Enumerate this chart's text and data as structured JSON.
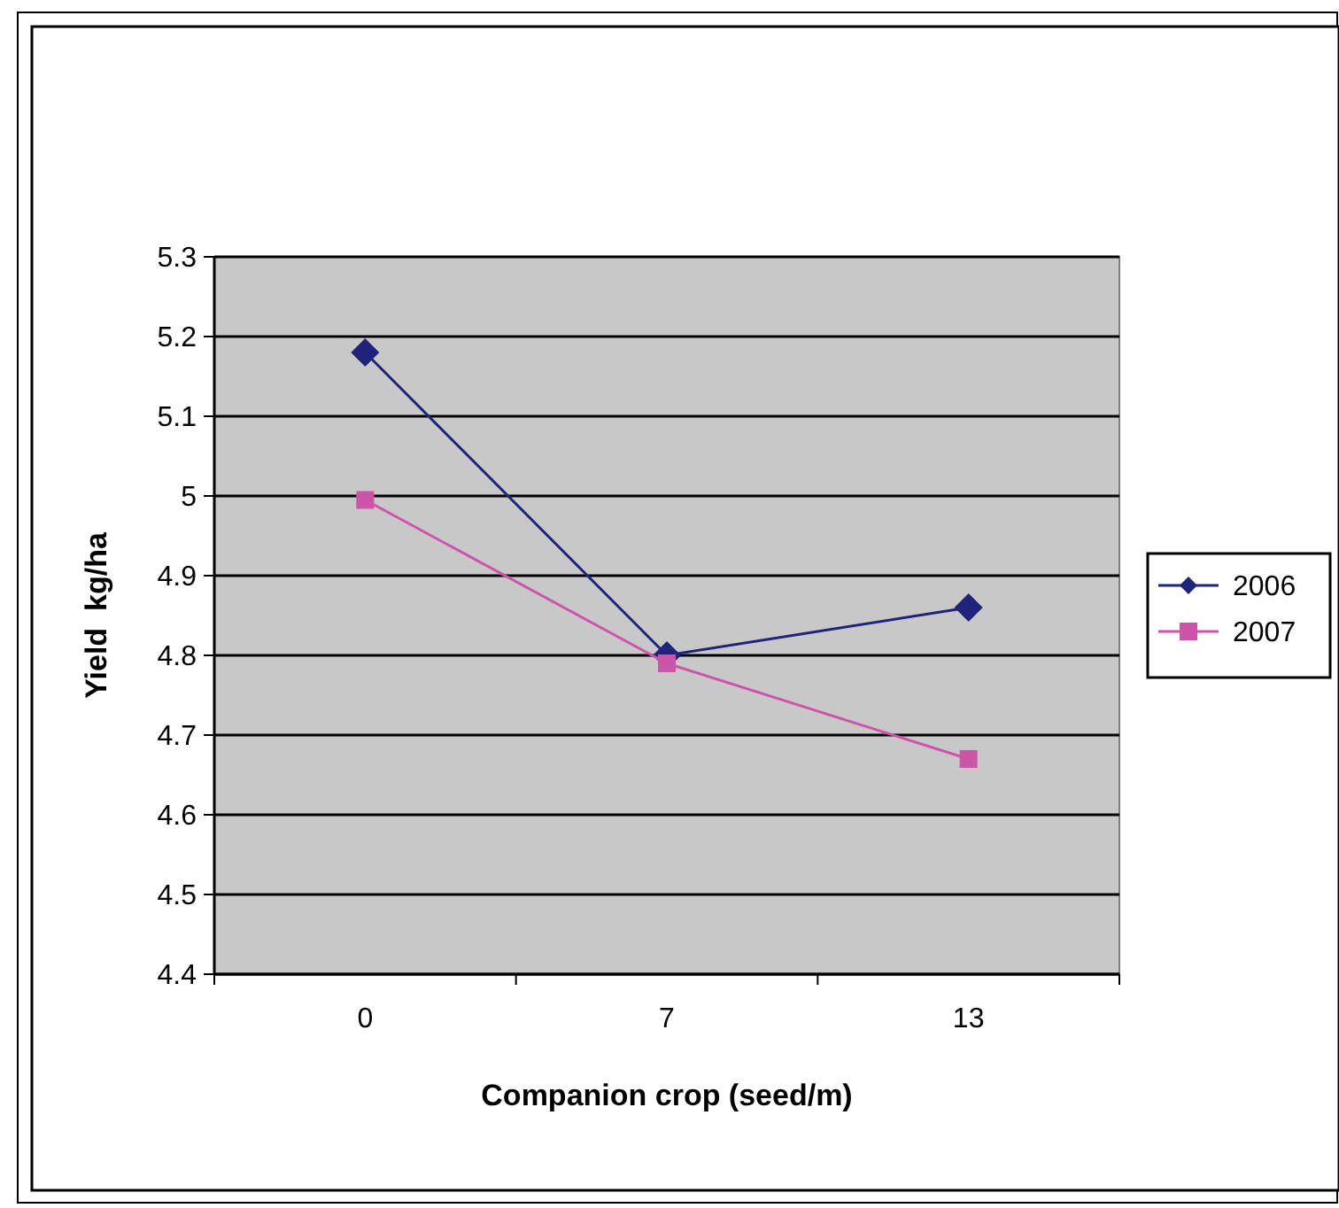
{
  "chart_data": {
    "type": "line",
    "xlabel": "Companion crop (seed/m)",
    "ylabel": "Yield  kg/ha",
    "categories": [
      "0",
      "7",
      "13"
    ],
    "series": [
      {
        "name": "2006",
        "color": "#1f237a",
        "marker": "diamond",
        "values": [
          5.18,
          4.8,
          4.86
        ]
      },
      {
        "name": "2007",
        "color": "#cc55aa",
        "marker": "square",
        "values": [
          4.995,
          4.79,
          4.67
        ]
      }
    ],
    "ylim": [
      4.4,
      5.3
    ],
    "yticks": [
      4.4,
      4.5,
      4.6,
      4.7,
      4.8,
      4.9,
      5,
      5.1,
      5.2,
      5.3
    ],
    "grid": "y",
    "legend": "right"
  }
}
